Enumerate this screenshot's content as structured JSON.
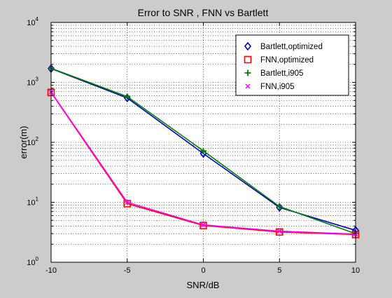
{
  "chart_data": {
    "type": "line",
    "title": "Error to SNR , FNN vs Bartlett",
    "xlabel": "SNR/dB",
    "ylabel": "error(m)",
    "xlim": [
      -10,
      10
    ],
    "ylim": [
      1,
      10000
    ],
    "yscale": "log",
    "grid": true,
    "legend_position": "top-right",
    "x": [
      -10,
      -5,
      0,
      5,
      10
    ],
    "xticks": [
      "-10",
      "-5",
      "0",
      "5",
      "10"
    ],
    "yticks": [
      {
        "base": "10",
        "exp": "0"
      },
      {
        "base": "10",
        "exp": "1"
      },
      {
        "base": "10",
        "exp": "2"
      },
      {
        "base": "10",
        "exp": "3"
      },
      {
        "base": "10",
        "exp": "4"
      }
    ],
    "series": [
      {
        "name": "Bartlett,optimized",
        "color": "#0000cc",
        "marker": "diamond",
        "values": [
          1700,
          550,
          65,
          8.2,
          3.4
        ]
      },
      {
        "name": "FNN,optimized",
        "color": "#ff0000",
        "marker": "square",
        "values": [
          680,
          9.5,
          4.1,
          3.2,
          2.9
        ]
      },
      {
        "name": "Bartlett,i905",
        "color": "#008000",
        "marker": "plus",
        "values": [
          1720,
          580,
          72,
          8.5,
          3.0
        ]
      },
      {
        "name": "FNN,i905",
        "color": "#ff00ff",
        "marker": "x",
        "values": [
          690,
          10,
          4.2,
          3.3,
          2.95
        ]
      }
    ]
  }
}
